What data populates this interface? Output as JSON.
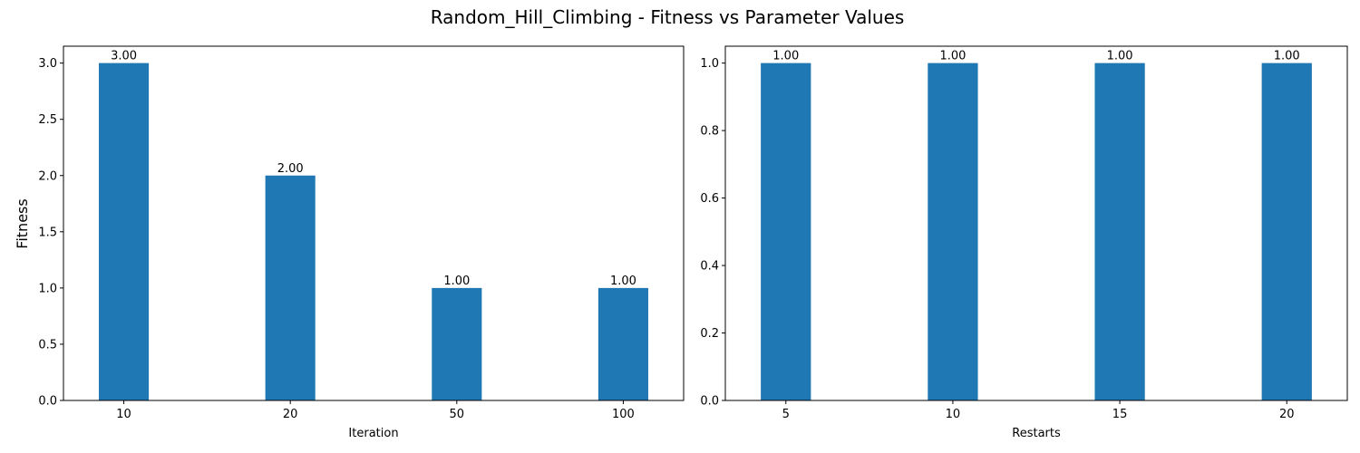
{
  "figure": {
    "title": "Random_Hill_Climbing - Fitness vs Parameter Values",
    "ylabel": "Fitness",
    "bar_color": "#1f77b4"
  },
  "chart_data": [
    {
      "type": "bar",
      "title": "",
      "xlabel": "Iteration",
      "ylabel": "Fitness",
      "categories": [
        "10",
        "20",
        "50",
        "100"
      ],
      "values": [
        3.0,
        2.0,
        1.0,
        1.0
      ],
      "value_labels": [
        "3.00",
        "2.00",
        "1.00",
        "1.00"
      ],
      "ylim": [
        0,
        3.15
      ],
      "yticks": [
        0.0,
        0.5,
        1.0,
        1.5,
        2.0,
        2.5,
        3.0
      ],
      "ytick_labels": [
        "0.0",
        "0.5",
        "1.0",
        "1.5",
        "2.0",
        "2.5",
        "3.0"
      ],
      "grid": false
    },
    {
      "type": "bar",
      "title": "",
      "xlabel": "Restarts",
      "ylabel": "",
      "categories": [
        "5",
        "10",
        "15",
        "20"
      ],
      "values": [
        1.0,
        1.0,
        1.0,
        1.0
      ],
      "value_labels": [
        "1.00",
        "1.00",
        "1.00",
        "1.00"
      ],
      "ylim": [
        0,
        1.05
      ],
      "yticks": [
        0.0,
        0.2,
        0.4,
        0.6,
        0.8,
        1.0
      ],
      "ytick_labels": [
        "0.0",
        "0.2",
        "0.4",
        "0.6",
        "0.8",
        "1.0"
      ],
      "grid": false
    }
  ]
}
